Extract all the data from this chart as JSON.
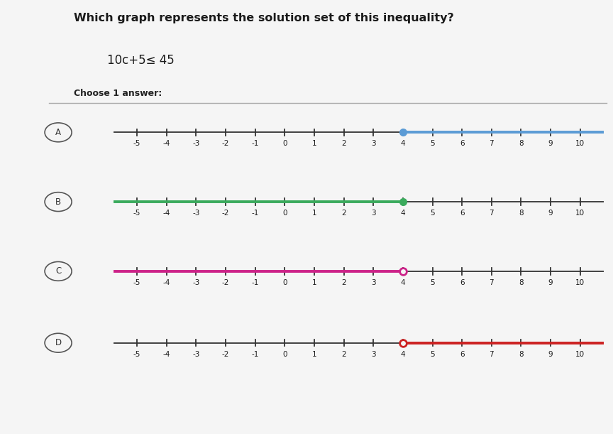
{
  "title": "Which graph represents the solution set of this inequality?",
  "inequality": "10c+5≤ 45",
  "choose_text": "Choose 1 answer:",
  "bg_color": "#e8e8e8",
  "white_panel": "#f5f5f5",
  "number_lines": [
    {
      "label": "A",
      "dot_value": 4,
      "dot_filled": true,
      "arrow_direction": "right",
      "highlight_color": "#5b9bd5",
      "highlight_from": 4,
      "highlight_to": 11
    },
    {
      "label": "B",
      "dot_value": 4,
      "dot_filled": true,
      "arrow_direction": "left",
      "highlight_color": "#3aaa5c",
      "highlight_from": -6,
      "highlight_to": 4
    },
    {
      "label": "C",
      "dot_value": 4,
      "dot_filled": false,
      "arrow_direction": "left",
      "highlight_color": "#cc2288",
      "highlight_from": -6,
      "highlight_to": 4
    },
    {
      "label": "D",
      "dot_value": 4,
      "dot_filled": false,
      "arrow_direction": "right",
      "highlight_color": "#cc2222",
      "highlight_from": 4,
      "highlight_to": 11
    }
  ],
  "xmin": -5.8,
  "xmax": 10.8,
  "tick_positions": [
    -5,
    -4,
    -3,
    -2,
    -1,
    0,
    1,
    2,
    3,
    4,
    5,
    6,
    7,
    8,
    9,
    10
  ],
  "tick_labels": [
    "-5",
    "-4",
    "-3",
    "-2",
    "-1",
    "0",
    "1",
    "2",
    "3",
    "4",
    "5",
    "6",
    "7",
    "8",
    "9",
    "10"
  ]
}
